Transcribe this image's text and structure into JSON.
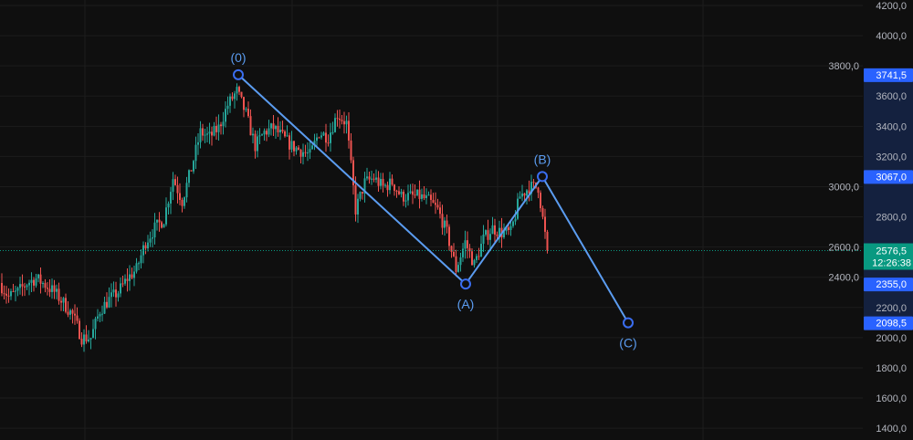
{
  "chart_data": {
    "type": "candlestick",
    "title": "",
    "xlabel": "",
    "ylabel": "",
    "ylim": [
      1330,
      4237
    ],
    "grid": true,
    "y_ticks": [
      "4200,0",
      "4000,0",
      "3800,0",
      "3600,0",
      "3400,0",
      "3200,0",
      "3000,0",
      "2800,0",
      "2600,0",
      "2400,0",
      "2200,0",
      "2000,0",
      "1800,0",
      "1600,0",
      "1400,0"
    ],
    "y_tick_values": [
      4200,
      4000,
      3800,
      3600,
      3400,
      3200,
      3000,
      2800,
      2600,
      2400,
      2200,
      2000,
      1800,
      1600,
      1400
    ],
    "approx_close_path": [
      2362,
      2271,
      2302,
      2362,
      2392,
      2350,
      2302,
      2229,
      2150,
      1999,
      1999,
      2181,
      2253,
      2302,
      2392,
      2453,
      2634,
      2725,
      2785,
      3057,
      2906,
      3118,
      3360,
      3329,
      3390,
      3541,
      3632,
      3480,
      3269,
      3360,
      3390,
      3329,
      3269,
      3239,
      3208,
      3360,
      3329,
      3480,
      3420,
      2846,
      3027,
      3057,
      2997,
      3027,
      2936,
      2936,
      2936,
      2906,
      2846,
      2695,
      2453,
      2634,
      2483,
      2653,
      2725,
      2695,
      2695,
      2936,
      2997,
      2997,
      2576.5
    ],
    "current_price": {
      "value": 2576.5,
      "label": "2576,5",
      "countdown": "12:26:38"
    },
    "elliott_wave": [
      {
        "label": "(0)",
        "index": 26.1,
        "price": 3741.5,
        "badge": "3741,5"
      },
      {
        "label": "(A)",
        "index": 51,
        "price": 2355.0,
        "badge": "2355,0"
      },
      {
        "label": "(B)",
        "index": 59.4,
        "price": 3067.0,
        "badge": "3067,0"
      },
      {
        "label": "(C)",
        "index": 68.8,
        "price": 2098.5,
        "badge": "2098,5"
      }
    ],
    "colors": {
      "background": "#0f0f0f",
      "up": "#26a69a",
      "down": "#ef5350",
      "wave_line": "#5b9cf0",
      "badge": "#2962ff",
      "price_badge": "#089981",
      "axis_highlight": "#14213f"
    }
  }
}
